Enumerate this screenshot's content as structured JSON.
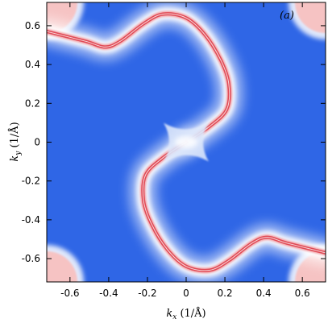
{
  "chart_data": {
    "type": "heatmap",
    "panel_label": "(a)",
    "xlabel": "k_x (1/Å)",
    "ylabel": "k_y (1/Å)",
    "xlim": [
      -0.72,
      0.72
    ],
    "ylim": [
      -0.72,
      0.72
    ],
    "x_ticks": [
      -0.6,
      -0.4,
      -0.2,
      0,
      0.2,
      0.4,
      0.6
    ],
    "y_ticks": [
      -0.6,
      -0.4,
      -0.2,
      0,
      0.2,
      0.4,
      0.6
    ],
    "x_tick_labels": [
      "-0.6",
      "-0.4",
      "-0.2",
      "0",
      "0.2",
      "0.4",
      "0.6"
    ],
    "y_tick_labels": [
      "-0.6",
      "-0.4",
      "-0.2",
      "0",
      "0.2",
      "0.4",
      "0.6"
    ],
    "colors": {
      "background": "#2f66e6",
      "halo": "#ffffff",
      "ridge": "#e04b57",
      "corner": "#f6c3c3"
    },
    "arcs": [
      {
        "name": "upper arc",
        "points": [
          [
            -0.72,
            0.57
          ],
          [
            -0.52,
            0.52
          ],
          [
            -0.42,
            0.49
          ],
          [
            -0.34,
            0.52
          ],
          [
            -0.22,
            0.61
          ],
          [
            -0.12,
            0.66
          ],
          [
            0.0,
            0.64
          ],
          [
            0.1,
            0.55
          ],
          [
            0.18,
            0.42
          ],
          [
            0.22,
            0.3
          ],
          [
            0.21,
            0.17
          ],
          [
            0.12,
            0.08
          ],
          [
            0.0,
            0.0
          ]
        ]
      },
      {
        "name": "lower arc",
        "points": [
          [
            0.72,
            -0.57
          ],
          [
            0.52,
            -0.52
          ],
          [
            0.42,
            -0.49
          ],
          [
            0.34,
            -0.52
          ],
          [
            0.22,
            -0.61
          ],
          [
            0.12,
            -0.66
          ],
          [
            0.0,
            -0.64
          ],
          [
            -0.1,
            -0.55
          ],
          [
            -0.18,
            -0.42
          ],
          [
            -0.22,
            -0.3
          ],
          [
            -0.21,
            -0.17
          ],
          [
            -0.12,
            -0.08
          ],
          [
            0.0,
            0.0
          ]
        ]
      }
    ],
    "corner_pockets": [
      [
        -0.72,
        0.72
      ],
      [
        0.72,
        0.72
      ],
      [
        -0.72,
        -0.72
      ],
      [
        0.72,
        -0.72
      ]
    ],
    "center_feature": [
      0.0,
      0.0
    ]
  }
}
